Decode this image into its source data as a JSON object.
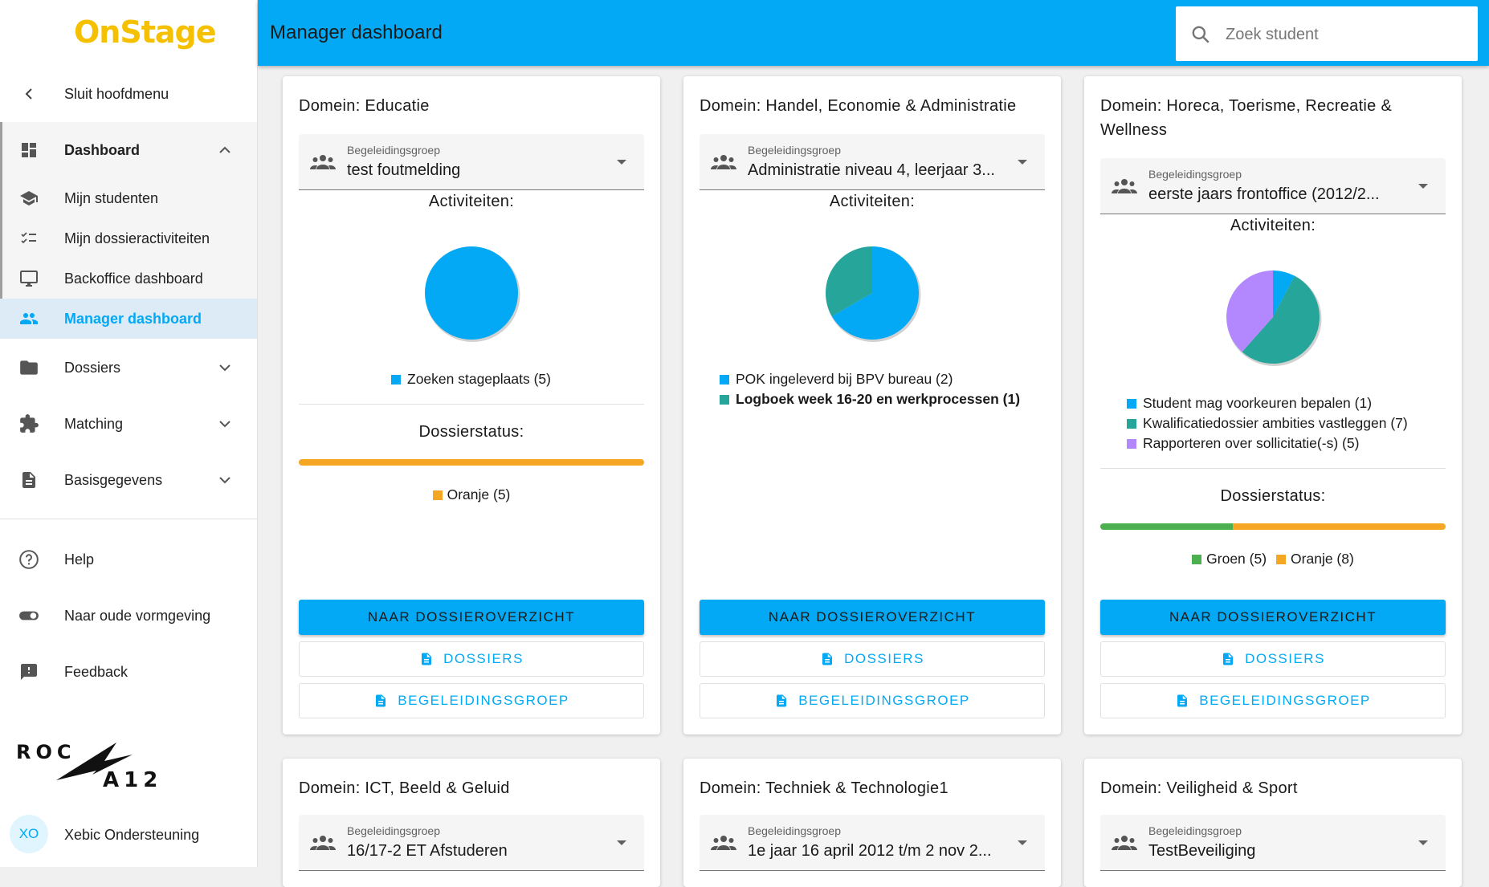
{
  "app": {
    "logo": "OnStage"
  },
  "sidebar": {
    "close_menu": "Sluit hoofdmenu",
    "items": [
      {
        "label": "Dashboard",
        "icon": "dashboard-icon"
      },
      {
        "label": "Mijn studenten",
        "icon": "school-icon"
      },
      {
        "label": "Mijn dossieractiviteiten",
        "icon": "checklist-icon"
      },
      {
        "label": "Backoffice dashboard",
        "icon": "monitor-icon"
      },
      {
        "label": "Manager dashboard",
        "icon": "people-icon"
      },
      {
        "label": "Dossiers",
        "icon": "folder-icon"
      },
      {
        "label": "Matching",
        "icon": "puzzle-icon"
      },
      {
        "label": "Basisgegevens",
        "icon": "document-icon"
      },
      {
        "label": "Help",
        "icon": "help-icon"
      },
      {
        "label": "Naar oude vormgeving",
        "icon": "toggle-icon"
      },
      {
        "label": "Feedback",
        "icon": "feedback-icon"
      }
    ],
    "user_initials": "XO",
    "user_name": "Xebic Ondersteuning",
    "org_logo_text": "ROC A 12"
  },
  "header": {
    "title": "Manager dashboard",
    "search_placeholder": "Zoek student"
  },
  "labels": {
    "select_label": "Begeleidingsgroep",
    "activities": "Activiteiten:",
    "dossier_status": "Dossierstatus:",
    "btn_overview": "NAAR DOSSIEROVERZICHT",
    "btn_dossiers": "DOSSIERS",
    "btn_group": "BEGELEIDINGSGROEP"
  },
  "colors": {
    "accent": "#03a9f4",
    "teal": "#26a69a",
    "purple": "#b388ff",
    "green": "#4caf50",
    "orange": "#f5a623"
  },
  "cards": [
    {
      "title": "Domein: Educatie",
      "group": "test foutmelding",
      "activities": [
        {
          "label": "Zoeken stageplaats (5)",
          "value": 5,
          "color": "#03a9f4"
        }
      ],
      "status": [
        {
          "label": "Oranje (5)",
          "value": 5,
          "color": "#f5a623"
        }
      ]
    },
    {
      "title": "Domein: Handel, Economie & Administratie",
      "group": "Administratie niveau 4, leerjaar 3...",
      "activities": [
        {
          "label": "POK ingeleverd bij BPV bureau (2)",
          "value": 2,
          "color": "#03a9f4"
        },
        {
          "label": "Logboek week 16-20 en werkprocessen (1)",
          "value": 1,
          "color": "#26a69a",
          "bold": true
        }
      ],
      "status": []
    },
    {
      "title": "Domein: Horeca, Toerisme, Recreatie & Wellness",
      "group": "eerste jaars frontoffice (2012/2...",
      "activities": [
        {
          "label": "Student mag voorkeuren bepalen (1)",
          "value": 1,
          "color": "#03a9f4"
        },
        {
          "label": "Kwalificatiedossier ambities vastleggen (7)",
          "value": 7,
          "color": "#26a69a"
        },
        {
          "label": "Rapporteren over sollicitatie(-s) (5)",
          "value": 5,
          "color": "#b388ff"
        }
      ],
      "status": [
        {
          "label": "Groen (5)",
          "value": 5,
          "color": "#4caf50"
        },
        {
          "label": "Oranje (8)",
          "value": 8,
          "color": "#f5a623"
        }
      ]
    },
    {
      "title": "Domein: ICT, Beeld & Geluid",
      "group": "16/17-2 ET Afstuderen"
    },
    {
      "title": "Domein: Techniek & Technologie1",
      "group": "1e jaar 16 april 2012 t/m 2 nov 2..."
    },
    {
      "title": "Domein: Veiligheid & Sport",
      "group": "TestBeveiliging"
    }
  ]
}
